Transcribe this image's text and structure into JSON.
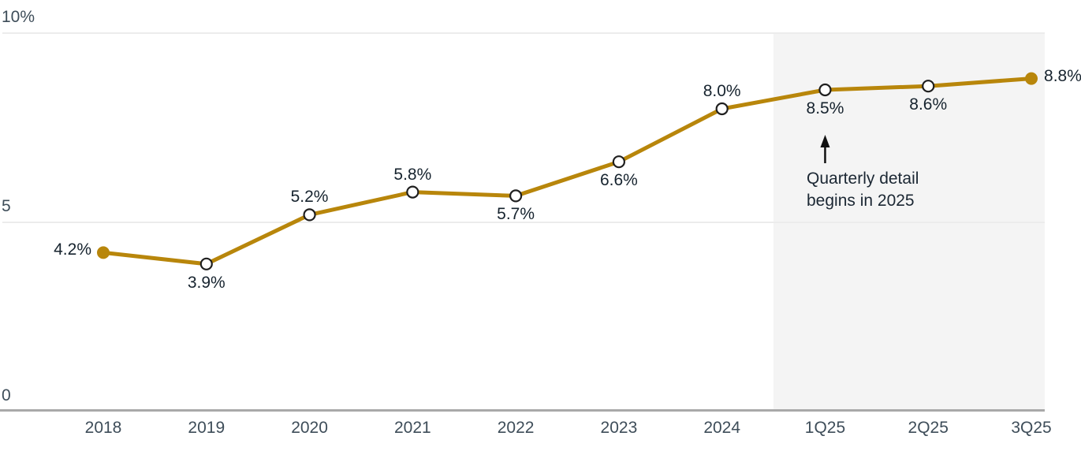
{
  "chart_data": {
    "type": "line",
    "title": "",
    "categories": [
      "2018",
      "2019",
      "2020",
      "2021",
      "2022",
      "2023",
      "2024",
      "1Q25",
      "2Q25",
      "3Q25"
    ],
    "values": [
      4.2,
      3.9,
      5.2,
      5.8,
      5.7,
      6.6,
      8.0,
      8.5,
      8.6,
      8.8
    ],
    "point_labels": [
      "4.2%",
      "3.9%",
      "5.2%",
      "5.8%",
      "5.7%",
      "6.6%",
      "8.0%",
      "8.5%",
      "8.6%",
      "8.8%"
    ],
    "label_positions": [
      "left",
      "below",
      "above",
      "above",
      "below",
      "below",
      "above",
      "below",
      "below",
      "right"
    ],
    "point_styles": [
      "filled",
      "open",
      "open",
      "open",
      "open",
      "open",
      "open",
      "open",
      "open",
      "filled"
    ],
    "xlabel": "",
    "ylabel": "",
    "ylim": [
      0,
      10
    ],
    "yticks": [
      {
        "value": 0,
        "label": "0"
      },
      {
        "value": 5,
        "label": "5"
      },
      {
        "value": 10,
        "label": "10%"
      }
    ],
    "grid": "horizontal",
    "legend": "none",
    "line_color": "#B8860B",
    "shaded_region": {
      "starts_before_category": "1Q25",
      "fill": "#f4f4f4"
    },
    "annotation": {
      "line1": "Quarterly detail",
      "line2": "begins in 2025",
      "arrow_direction": "up",
      "points_at_category": "1Q25"
    },
    "colors": {
      "grid_line": "#ececec",
      "axis_line": "#a9a9a9",
      "tick_text": "#3e4d59",
      "label_text": "#16232e",
      "open_point_stroke": "#1f1f1f"
    }
  }
}
